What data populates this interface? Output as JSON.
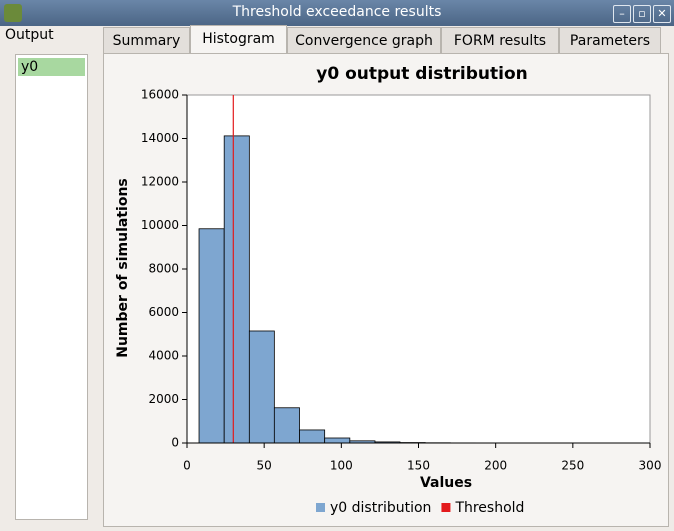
{
  "window": {
    "title": "Threshold exceedance results"
  },
  "sidebar": {
    "title": "Output",
    "items": [
      "y0"
    ]
  },
  "tabs": [
    "Summary",
    "Histogram",
    "Convergence graph",
    "FORM results",
    "Parameters"
  ],
  "chart_data": {
    "type": "histogram",
    "title": "y0 output distribution",
    "xlabel": "Values",
    "ylabel": "Number of simulations",
    "bins": [
      7.8,
      24.1,
      40.4,
      56.6,
      72.9,
      89.2,
      105.5,
      121.8,
      138.0,
      154.3,
      170.6,
      186.9,
      203.2,
      219.4,
      235.7,
      252.0,
      268.3
    ],
    "series": [
      {
        "name": "y0 distribution",
        "color": "#7ea6d0",
        "values": [
          9850,
          14120,
          5150,
          1620,
          600,
          230,
          100,
          50,
          20,
          10,
          5,
          3,
          2,
          1,
          1,
          1
        ]
      }
    ],
    "threshold": {
      "name": "Threshold",
      "value": 30,
      "color": "#e31a1c"
    },
    "xlim": [
      0,
      300
    ],
    "xticks": [
      0,
      50,
      100,
      150,
      200,
      250,
      300
    ],
    "ylim": [
      0,
      16000
    ],
    "yticks": [
      0,
      2000,
      4000,
      6000,
      8000,
      10000,
      12000,
      14000,
      16000
    ]
  }
}
